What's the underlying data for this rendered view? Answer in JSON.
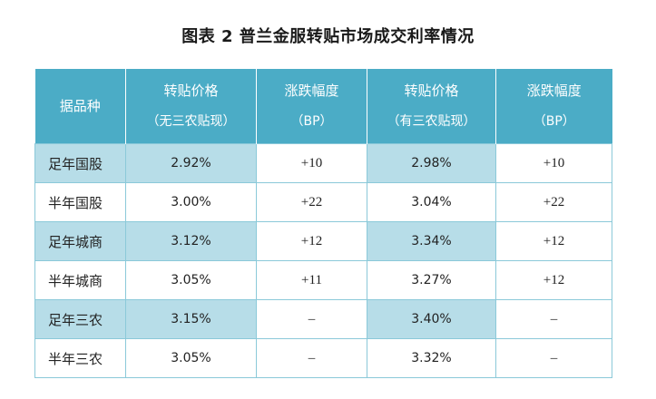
{
  "title": "图表 2  普兰金服转贴市场成交利率情况",
  "table": {
    "headers": [
      {
        "line1": "据品种",
        "line2": ""
      },
      {
        "line1": "转贴价格",
        "line2": "（无三农贴现）"
      },
      {
        "line1": "涨跌幅度",
        "line2": "（BP）"
      },
      {
        "line1": "转贴价格",
        "line2": "（有三农贴现）"
      },
      {
        "line1": "涨跌幅度",
        "line2": "（BP）"
      }
    ],
    "rows": [
      [
        "足年国股",
        "2.92%",
        "+10",
        "2.98%",
        "+10"
      ],
      [
        "半年国股",
        "3.00%",
        "+22",
        "3.04%",
        "+22"
      ],
      [
        "足年城商",
        "3.12%",
        "+12",
        "3.34%",
        "+12"
      ],
      [
        "半年城商",
        "3.05%",
        "+11",
        "3.27%",
        "+12"
      ],
      [
        "足年三农",
        "3.15%",
        "–",
        "3.40%",
        "–"
      ],
      [
        "半年三农",
        "3.05%",
        "–",
        "3.32%",
        "–"
      ]
    ]
  },
  "colors": {
    "header_bg": "#4bacc6",
    "shaded_cell": "#b7dde8",
    "border": "#8bc9d9"
  }
}
